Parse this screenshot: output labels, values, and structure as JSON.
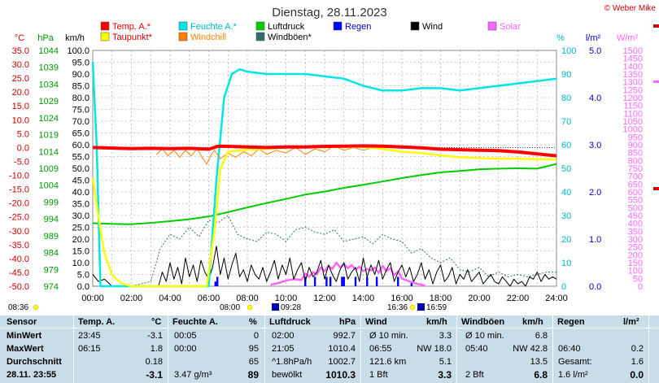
{
  "title": "Dienstag, 28.11.2023",
  "credit": "© Weber Mike",
  "colors": {
    "temp": "#ff0000",
    "dew": "#ffff00",
    "hum": "#00e5e5",
    "chill": "#ff8000",
    "press": "#00cc00",
    "gust": "#2f6f6f",
    "rain": "#0000ff",
    "wind": "#000000",
    "solar": "#ff66ff"
  },
  "legend": [
    {
      "label": "Temp. A.*",
      "color": "#ff0000"
    },
    {
      "label": "Feuchte A.*",
      "color": "#00e5e5"
    },
    {
      "label": "Luftdruck",
      "color": "#00cc00"
    },
    {
      "label": "Regen",
      "color": "#0000ff"
    },
    {
      "label": "Wind",
      "color": "#000000"
    },
    {
      "label": "Solar",
      "color": "#ff66ff"
    },
    {
      "label": "Taupunkt*",
      "color": "#ffff00"
    },
    {
      "label": "Windchill",
      "color": "#ff8000"
    },
    {
      "label": "Windböen*",
      "color": "#2f6f6f"
    }
  ],
  "axis_units": {
    "temp": "°C",
    "press": "hPa",
    "wind": "km/h",
    "hum": "%",
    "rain": "l/m²",
    "solar": "W/m²"
  },
  "chart_data": {
    "type": "line",
    "xlabel": "",
    "x_ticks": [
      "00:00",
      "02:00",
      "04:00",
      "06:00",
      "08:00",
      "10:00",
      "12:00",
      "14:00",
      "16:00",
      "18:00",
      "20:00",
      "22:00",
      "24:00"
    ],
    "axes": {
      "temp_c": {
        "range": [
          -50,
          35
        ],
        "step": 5
      },
      "pressure_hpa": {
        "range": [
          974,
          1044
        ],
        "labels": [
          974,
          979,
          984,
          989,
          994,
          999,
          1004,
          1009,
          1014,
          1019,
          1024,
          1029,
          1034,
          1039,
          1044
        ]
      },
      "wind_kmh": {
        "range": [
          0,
          100
        ],
        "step": 5
      },
      "humidity_pct": {
        "range": [
          0,
          100
        ],
        "step": 10
      },
      "rain_lm2": {
        "range": [
          0,
          5
        ],
        "ticks": [
          0,
          1,
          2,
          3,
          4,
          5
        ],
        "labels": [
          "0.0",
          "1.0",
          "2.0",
          "3.0",
          "4.0",
          "5.0"
        ]
      },
      "solar_wm2": {
        "range": [
          0,
          1500
        ],
        "step": 50
      }
    },
    "series": [
      {
        "name": "Temp. A.*",
        "x": [
          0,
          1,
          2,
          3,
          4,
          5,
          6,
          6.5,
          7,
          8,
          9,
          10,
          11,
          12,
          13,
          14,
          15,
          16,
          17,
          18,
          19,
          20,
          21,
          22,
          23,
          24
        ],
        "values": [
          0,
          -0.2,
          -0.4,
          -0.3,
          -0.4,
          -0.3,
          -0.6,
          0.5,
          0.4,
          0.2,
          0.0,
          0.2,
          0.2,
          0.4,
          0.5,
          0.6,
          0.5,
          0.2,
          -0.1,
          -0.6,
          -0.8,
          -1.0,
          -1.1,
          -1.6,
          -2.3,
          -3.0
        ]
      },
      {
        "name": "Taupunkt*",
        "x": [
          0,
          0.3,
          0.6,
          1.0,
          1.5,
          2.0,
          5.9,
          6.3,
          6.6,
          7,
          8,
          9,
          10,
          11,
          12,
          13,
          14,
          15,
          16,
          17,
          18,
          19,
          20,
          21,
          22,
          23,
          24
        ],
        "values": [
          -11,
          -25,
          -38,
          -46,
          -49,
          -50,
          -50,
          -30,
          -8,
          -1.5,
          -0.8,
          -0.5,
          0,
          0.2,
          0.1,
          0.2,
          0.2,
          -0.5,
          -1.5,
          -2,
          -2.8,
          -3.5,
          -3.8,
          -4,
          -4,
          -4.2,
          -4.3
        ]
      },
      {
        "name": "Windchill",
        "x": [
          3.3,
          3.6,
          3.9,
          4.2,
          4.5,
          4.8,
          5.1,
          5.4,
          5.7,
          5.9,
          6.1,
          6.3,
          6.6,
          7,
          7.4,
          7.8,
          8.2,
          8.6,
          9,
          9.5,
          10,
          10.5,
          11,
          11.5,
          12,
          12.5,
          13,
          13.5,
          14,
          14.5
        ],
        "values": [
          -2.5,
          -0.5,
          -3,
          -1,
          -3.5,
          -1,
          -3,
          -0.5,
          -4,
          -6,
          -3,
          -1,
          -4,
          -2,
          -3.5,
          -1.5,
          -3,
          -0.5,
          -2.5,
          -1,
          -2,
          0,
          -2.5,
          -0.5,
          -1.5,
          0.5,
          -1,
          0,
          -1,
          0
        ]
      },
      {
        "name": "Feuchte A.*",
        "x": [
          0,
          0.2,
          0.4,
          6.0,
          6.4,
          6.8,
          7.2,
          7.6,
          8,
          9,
          10,
          11,
          12,
          13,
          14,
          15,
          16,
          17,
          18,
          19,
          20,
          21,
          22,
          23,
          24
        ],
        "values": [
          95,
          60,
          0,
          0,
          45,
          80,
          90,
          92,
          91,
          90,
          90,
          90,
          89,
          88,
          85,
          83,
          83,
          84,
          84,
          83,
          84,
          85,
          86,
          87,
          88
        ]
      },
      {
        "name": "Luftdruck",
        "x": [
          0,
          1,
          2,
          3,
          4,
          5,
          6,
          7,
          8,
          9,
          10,
          11,
          12,
          13,
          14,
          15,
          16,
          17,
          18,
          19,
          20,
          21,
          22,
          23,
          24
        ],
        "values": [
          992.7,
          992.5,
          992.4,
          992.8,
          993.3,
          993.9,
          994.7,
          996.0,
          997.4,
          998.7,
          999.9,
          1001.2,
          1002.1,
          1003.2,
          1004.1,
          1005.1,
          1006.1,
          1007.0,
          1007.8,
          1008.2,
          1008.7,
          1008.9,
          1009.0,
          1008.9,
          1010.3
        ]
      },
      {
        "name": "Wind",
        "x": [
          0,
          0.3,
          0.6,
          1,
          3.4,
          3.6,
          3.8,
          4.0,
          4.2,
          4.4,
          4.6,
          4.8,
          5.0,
          5.2,
          5.4,
          5.6,
          5.8,
          6.0,
          6.2,
          6.4,
          6.6,
          6.8,
          7.0,
          7.2,
          7.4,
          7.6,
          7.8,
          8.0,
          8.2,
          8.4,
          8.6,
          8.8,
          9.0,
          9.2,
          9.4,
          9.6,
          9.8,
          10.0,
          10.2,
          10.4,
          10.6,
          10.8,
          11.0,
          11.2,
          11.4,
          11.6,
          11.8,
          12.0,
          12.2,
          12.4,
          12.6,
          12.8,
          13.0,
          13.2,
          13.4,
          13.6,
          13.8,
          14.0,
          14.2,
          14.4,
          14.6,
          14.8,
          15.0,
          15.2,
          15.4,
          15.6,
          15.8,
          16.0,
          16.2,
          16.4,
          16.6,
          16.8,
          17.0,
          17.2,
          17.4,
          17.6,
          17.8,
          18.0,
          18.2,
          18.4,
          18.6,
          18.8,
          19.0,
          19.2,
          19.4,
          19.6,
          19.8,
          20.0,
          20.2,
          20.4,
          20.6,
          20.8,
          21.0,
          21.2,
          21.4,
          21.6,
          21.8,
          22.0,
          22.2,
          22.4,
          22.6,
          22.8,
          23.0,
          23.2,
          23.4,
          23.6,
          23.8,
          24
        ],
        "values": [
          5,
          2,
          3,
          0,
          0,
          6,
          2,
          10,
          3,
          8,
          1,
          12,
          4,
          9,
          2,
          11,
          6,
          3,
          8,
          17,
          5,
          12,
          3,
          9,
          14,
          4,
          7,
          2,
          9,
          5,
          3,
          8,
          2,
          6,
          11,
          3,
          9,
          5,
          12,
          3,
          7,
          10,
          2,
          8,
          4,
          6,
          11,
          3,
          9,
          5,
          2,
          7,
          10,
          3,
          6,
          8,
          2,
          12,
          4,
          9,
          5,
          11,
          3,
          7,
          10,
          2,
          6,
          9,
          4,
          8,
          2,
          5,
          10,
          3,
          7,
          1,
          6,
          9,
          2,
          4,
          8,
          1,
          5,
          3,
          7,
          2,
          4,
          6,
          1,
          3,
          5,
          2,
          1,
          4,
          2,
          0,
          3,
          1,
          2,
          0,
          4,
          3,
          6,
          2,
          5,
          3,
          4,
          3
        ]
      },
      {
        "name": "Windböen*",
        "x": [
          0,
          1,
          2,
          3,
          3.5,
          4,
          4.5,
          5,
          5.5,
          6,
          6.5,
          7,
          7.5,
          8,
          8.5,
          9,
          9.5,
          10,
          10.5,
          11,
          11.5,
          12,
          12.5,
          13,
          13.5,
          14,
          14.5,
          15,
          15.5,
          16,
          16.5,
          17,
          17.5,
          18,
          18.5,
          19,
          19.5,
          20,
          20.5,
          21,
          21.5,
          22,
          22.5,
          23,
          23.5,
          24
        ],
        "values": [
          0,
          0,
          0,
          2,
          16,
          22,
          20,
          25,
          21,
          28,
          27,
          30,
          22,
          20,
          19,
          23,
          22,
          19,
          24,
          25,
          23,
          22,
          24,
          19,
          20,
          21,
          18,
          22,
          20,
          19,
          14,
          16,
          12,
          10,
          12,
          7,
          6,
          8,
          4,
          6,
          4,
          5,
          4,
          5,
          6,
          6
        ]
      },
      {
        "name": "Solar",
        "x": [
          9.2,
          9.6,
          10,
          10.4,
          10.8,
          11,
          11.2,
          11.4,
          11.6,
          11.8,
          12,
          12.2,
          12.4,
          12.6,
          12.8,
          13,
          13.2,
          13.4,
          13.6,
          13.8,
          14,
          14.2,
          14.4,
          14.6,
          14.8,
          15,
          15.2,
          15.4,
          15.6,
          15.8,
          16,
          16.4,
          16.8,
          17.2
        ],
        "values": [
          10,
          20,
          35,
          45,
          40,
          80,
          60,
          90,
          75,
          120,
          95,
          130,
          110,
          150,
          120,
          140,
          115,
          135,
          105,
          125,
          95,
          110,
          100,
          120,
          85,
          130,
          95,
          115,
          70,
          95,
          50,
          30,
          15,
          5
        ]
      },
      {
        "name": "Regen",
        "x": [
          6.35,
          6.45,
          11.0,
          11.5,
          12.1,
          12.3,
          12.9,
          13.0,
          13.6,
          14.2,
          14.7,
          15.8,
          16.5
        ],
        "values": [
          0.1,
          0.2,
          0.2,
          0.2,
          0.2,
          0.2,
          0.2,
          0.2,
          0.2,
          0.2,
          0.2,
          0.2,
          0.1
        ]
      }
    ]
  },
  "time_markers": {
    "left": "08:36",
    "sunrise": "08:00",
    "noonish": "09:28",
    "sunset": "16:36",
    "sunset2": "16:59"
  },
  "table": {
    "headers": {
      "sensor": "Sensor",
      "temp": "Temp. A.",
      "temp_u": "°C",
      "hum": "Feuchte A.",
      "hum_u": "%",
      "press": "Luftdruck",
      "press_u": "hPa",
      "wind": "Wind",
      "wind_u": "km/h",
      "gust": "Windböen",
      "gust_u": "km/h",
      "rain": "Regen",
      "rain_u": "l/m²"
    },
    "rows": [
      {
        "label": "MinWert",
        "t_time": "23:45",
        "t_val": "-3.1",
        "h_time": "00:05",
        "h_val": "0",
        "p_time": "02:00",
        "p_val": "992.7",
        "w_time": "Ø 10 min.",
        "w_val": "3.3",
        "g_time": "Ø 10 min.",
        "g_val": "6.8",
        "r_time": "",
        "r_val": ""
      },
      {
        "label": "MaxWert",
        "t_time": "06:15",
        "t_val": "1.8",
        "h_time": "00:00",
        "h_val": "95",
        "p_time": "21:05",
        "p_val": "1010.4",
        "w_time": "06:55",
        "w_val": "NW 18.0",
        "g_time": "05:40",
        "g_val": "NW 42.8",
        "r_time": "06:40",
        "r_val": "0.2"
      },
      {
        "label": "Durchschnitt",
        "t_time": "",
        "t_val": "0.18",
        "h_time": "",
        "h_val": "65",
        "p_time": "^1.8hPa/h",
        "p_val": "1002.7",
        "w_time": "121.6 km",
        "w_val": "5.1",
        "g_time": "",
        "g_val": "13.5",
        "r_time": "Gesamt:",
        "r_val": "1.6"
      },
      {
        "label": "28.11. 23:55",
        "t_time": "",
        "t_val": "-3.1",
        "h_time": "3.47 g/m³",
        "h_val": "89",
        "p_time": "bewölkt",
        "p_val": "1010.3",
        "w_time": "1 Bft",
        "w_val": "3.3",
        "g_time": "2 Bft",
        "g_val": "6.8",
        "r_time": "1.6 l/m²",
        "r_val": "0.0"
      }
    ]
  }
}
